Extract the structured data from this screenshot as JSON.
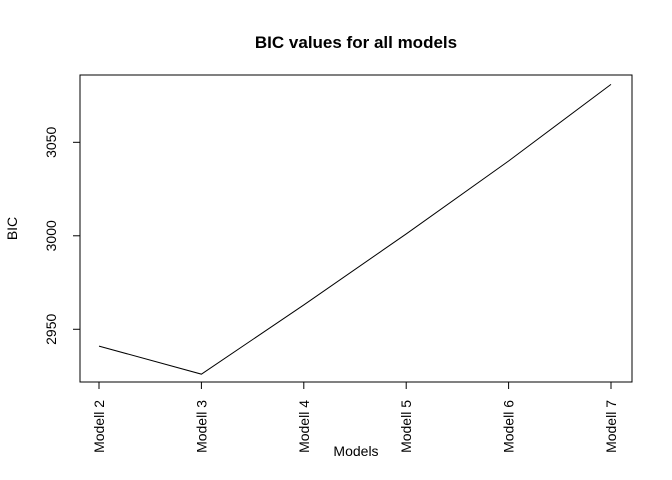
{
  "chart_data": {
    "type": "line",
    "title": "BIC values for all models",
    "xlabel": "Models",
    "ylabel": "BIC",
    "categories": [
      "Modell 2",
      "Modell 3",
      "Modell 4",
      "Modell 5",
      "Modell 6",
      "Modell 7"
    ],
    "values": [
      2941,
      2926,
      2963,
      3001,
      3040,
      3081
    ],
    "yticks": [
      2950,
      3000,
      3050
    ],
    "ylim": [
      2921.8,
      3086
    ],
    "grid": false,
    "colors": {
      "line": "#000000",
      "axis": "#000000"
    }
  }
}
